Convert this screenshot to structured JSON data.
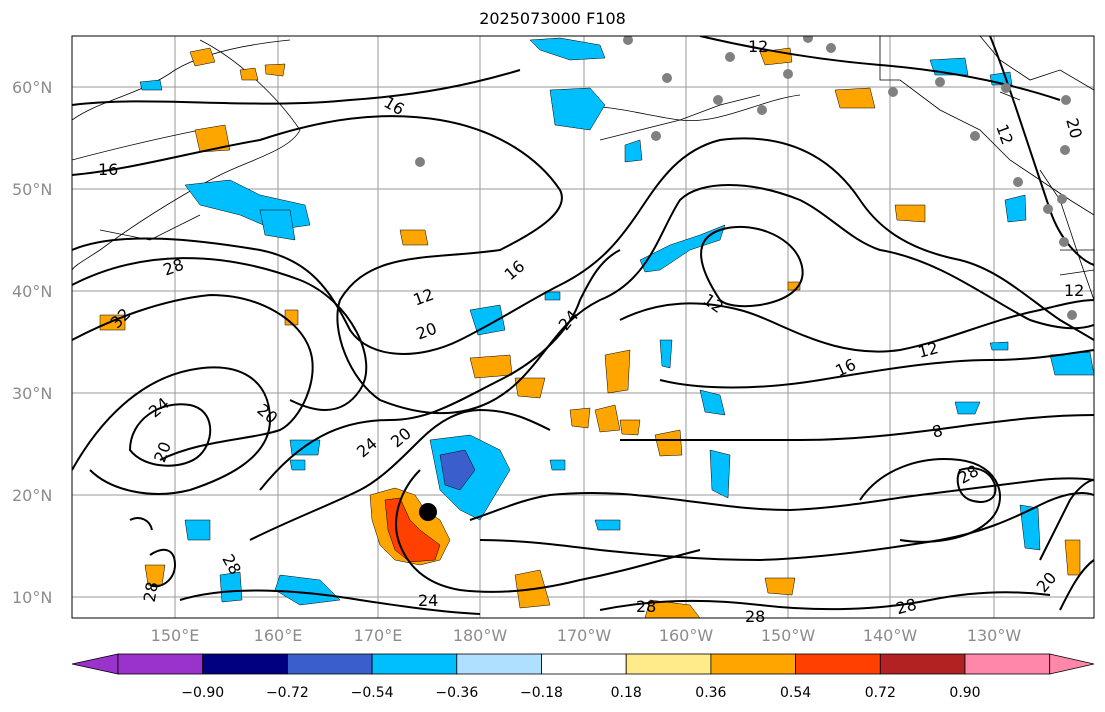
{
  "title": "2025073000 F108",
  "lat_labels": [
    "60°N",
    "50°N",
    "40°N",
    "30°N",
    "20°N",
    "10°N"
  ],
  "lon_labels": [
    "150°E",
    "160°E",
    "170°E",
    "180°W",
    "170°W",
    "160°W",
    "150°W",
    "140°W",
    "130°W"
  ],
  "contour_labels": [
    "12",
    "16",
    "16",
    "28",
    "32",
    "12",
    "20",
    "24",
    "16",
    "12",
    "12",
    "16",
    "24",
    "20",
    "20",
    "24",
    "28",
    "28",
    "28",
    "24",
    "28",
    "28",
    "28",
    "20",
    "8",
    "12",
    "20",
    "12",
    "20"
  ],
  "colorbar": {
    "ticks": [
      "−0.90",
      "−0.72",
      "−0.54",
      "−0.36",
      "−0.18",
      "0.18",
      "0.36",
      "0.54",
      "0.72",
      "0.90"
    ],
    "colors": [
      "#9933cc",
      "#000080",
      "#3a5fcd",
      "#00bfff",
      "#b0e0ff",
      "#ffffff",
      "#ffeb8a",
      "#ffa500",
      "#ff4000",
      "#b22222",
      "#ff88aa"
    ]
  },
  "field_colors": {
    "light_orange": "#ffa500",
    "red_orange": "#ff4000",
    "cyan": "#00bfff",
    "blue": "#3a5fcd"
  }
}
